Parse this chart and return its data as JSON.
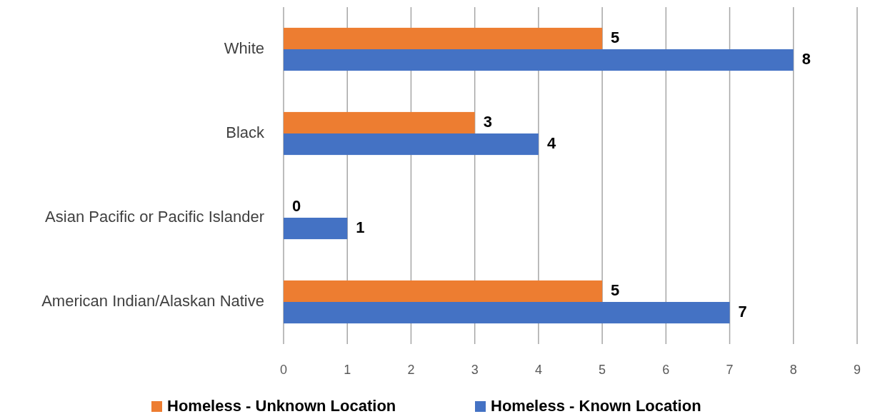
{
  "chart_data": {
    "type": "bar",
    "orientation": "horizontal",
    "categories": [
      "White",
      "Black",
      "Asian Pacific or Pacific Islander",
      "American Indian/Alaskan Native"
    ],
    "series": [
      {
        "name": "Homeless - Unknown Location",
        "color": "#ed7d31",
        "values": [
          5,
          3,
          0,
          5
        ]
      },
      {
        "name": "Homeless - Known Location",
        "color": "#4472c4",
        "values": [
          8,
          4,
          1,
          7
        ]
      }
    ],
    "xlim": [
      0,
      9
    ],
    "xticks": [
      0,
      1,
      2,
      3,
      4,
      5,
      6,
      7,
      8,
      9
    ],
    "grid": "x",
    "legend": "bottom",
    "data_labels": true
  }
}
